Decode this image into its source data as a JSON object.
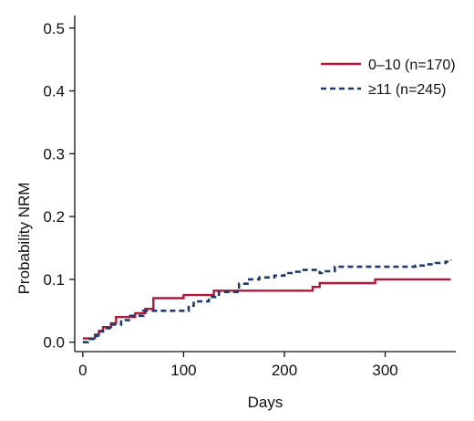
{
  "chart_data": {
    "type": "line",
    "step": true,
    "xlabel": "Days",
    "ylabel": "Probability NRM",
    "xlim": [
      -8,
      370
    ],
    "ylim": [
      -0.015,
      0.52
    ],
    "xticks": [
      "0",
      "100",
      "200",
      "300"
    ],
    "yticks": [
      "0.0",
      "0.1",
      "0.2",
      "0.3",
      "0.4",
      "0.5"
    ],
    "legend_position": "top-right",
    "grid": false,
    "series": [
      {
        "name": "0–10 (n=170)",
        "color": "#b3183a",
        "dash": "solid",
        "x": [
          0,
          8,
          12,
          16,
          20,
          28,
          33,
          45,
          52,
          62,
          70,
          100,
          130,
          228,
          235,
          290,
          365
        ],
        "y": [
          0.006,
          0.006,
          0.012,
          0.018,
          0.024,
          0.03,
          0.04,
          0.04,
          0.046,
          0.053,
          0.07,
          0.075,
          0.082,
          0.088,
          0.094,
          0.1,
          0.1
        ]
      },
      {
        "name": "≥11 (n=245)",
        "color": "#1f3b6e",
        "dash": "dashed",
        "x": [
          0,
          5,
          10,
          15,
          20,
          28,
          38,
          47,
          60,
          105,
          110,
          125,
          135,
          155,
          165,
          175,
          190,
          200,
          210,
          215,
          230,
          235,
          240,
          250,
          300,
          330,
          340,
          350,
          360,
          365
        ],
        "y": [
          0.0,
          0.005,
          0.01,
          0.017,
          0.022,
          0.028,
          0.035,
          0.042,
          0.05,
          0.058,
          0.065,
          0.072,
          0.08,
          0.093,
          0.1,
          0.103,
          0.106,
          0.11,
          0.112,
          0.115,
          0.115,
          0.11,
          0.113,
          0.12,
          0.12,
          0.122,
          0.124,
          0.126,
          0.128,
          0.131
        ]
      }
    ]
  }
}
